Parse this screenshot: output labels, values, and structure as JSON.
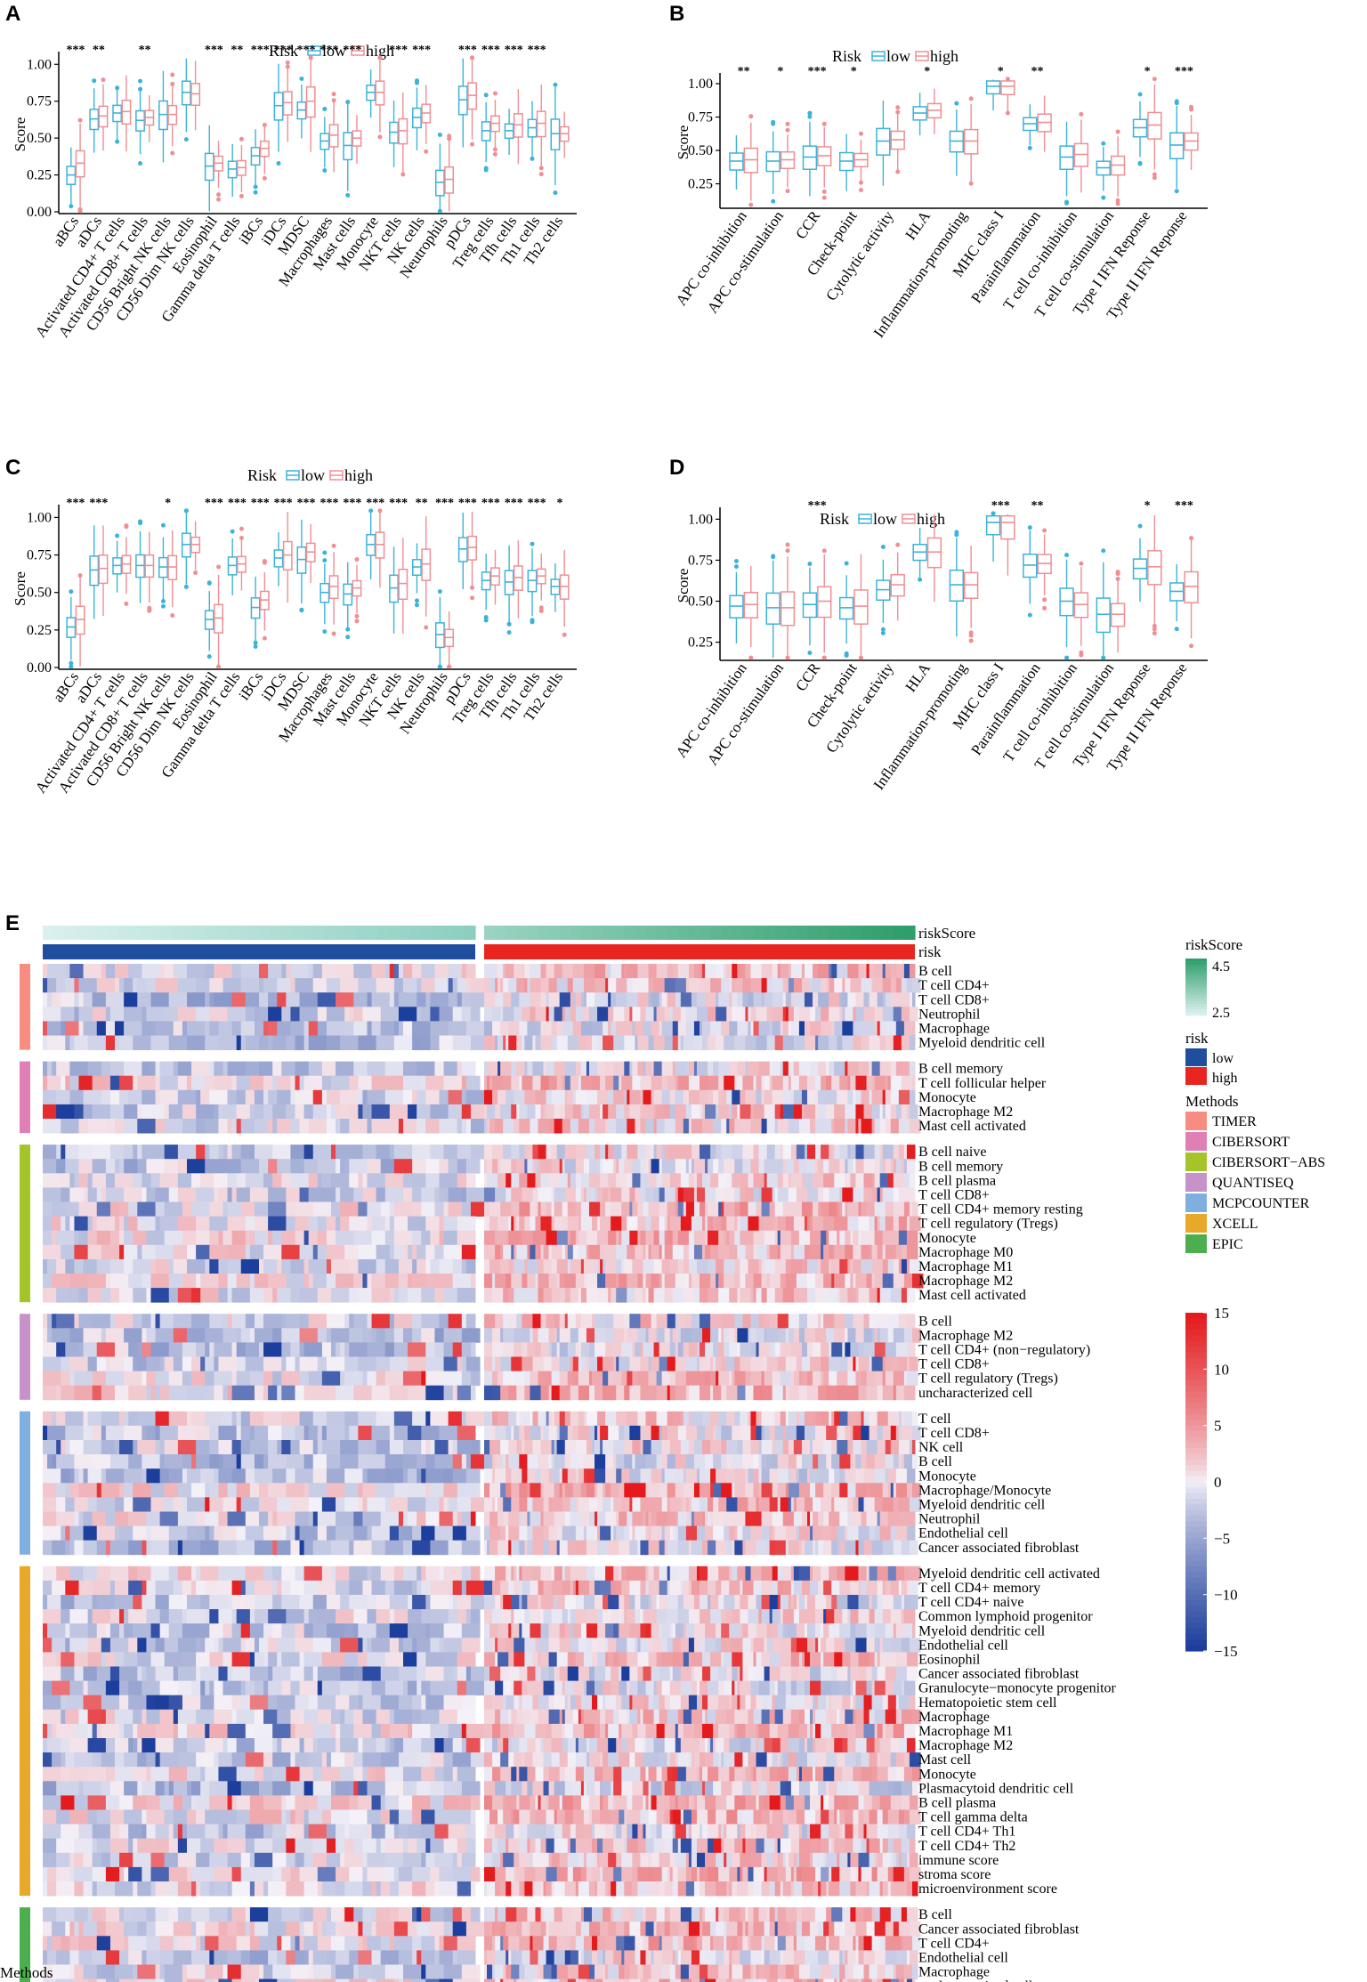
{
  "panels": [
    {
      "letter": "A",
      "legend_title": "Risk",
      "legend_low": "low",
      "legend_high": "high"
    },
    {
      "letter": "B",
      "legend_title": "Risk",
      "legend_low": "low",
      "legend_high": "high"
    },
    {
      "letter": "C",
      "legend_title": "Risk",
      "legend_low": "low",
      "legend_high": "high"
    },
    {
      "letter": "D",
      "legend_title": "Risk",
      "legend_low": "low",
      "legend_high": "high"
    },
    {
      "letter": "E"
    }
  ],
  "colors": {
    "low": "#3bb3d9",
    "high": "#f08e93",
    "heat_low": "#1c3e9c",
    "heat_mid": "#ffffff",
    "heat_high": "#e41a1c",
    "risk_low": "#1f4e9e",
    "risk_high": "#e8251f",
    "score_low": "#d9f0ee",
    "score_high": "#2e9e6a"
  },
  "chart_data": [
    {
      "type": "box",
      "ylabel": "Score",
      "yticks": [
        "0.00",
        "0.25",
        "0.50",
        "0.75",
        "1.00"
      ],
      "ylim": [
        0,
        1.05
      ],
      "categories": [
        "aBCs",
        "aDCs",
        "Activated CD4+ T cells",
        "Activated CD8+ T cells",
        "CD56 Bright NK cells",
        "CD56 Dim NK cells",
        "Eosinophil",
        "Gamma delta T cells",
        "iBCs",
        "iDCs",
        "MDSC",
        "Macrophages",
        "Mast cells",
        "Monocyte",
        "NKT cells",
        "NK cells",
        "Neutrophils",
        "pDCs",
        "Treg cells",
        "Tfh cells",
        "Th1 cells",
        "Th2 cells"
      ],
      "significance": [
        "***",
        "**",
        "",
        "**",
        "",
        "",
        "***",
        "**",
        "***",
        "***",
        "***",
        "***",
        "***",
        "",
        "***",
        "***",
        "",
        "***",
        "***",
        "***",
        "***",
        ""
      ],
      "series": [
        {
          "name": "low",
          "medians": [
            0.25,
            0.63,
            0.67,
            0.62,
            0.66,
            0.81,
            0.31,
            0.29,
            0.38,
            0.72,
            0.69,
            0.48,
            0.45,
            0.81,
            0.54,
            0.64,
            0.2,
            0.76,
            0.55,
            0.55,
            0.57,
            0.53
          ]
        },
        {
          "name": "high",
          "medians": [
            0.33,
            0.65,
            0.68,
            0.64,
            0.66,
            0.8,
            0.33,
            0.3,
            0.43,
            0.74,
            0.75,
            0.52,
            0.5,
            0.81,
            0.55,
            0.67,
            0.22,
            0.79,
            0.6,
            0.59,
            0.6,
            0.53
          ]
        }
      ]
    },
    {
      "type": "box",
      "ylabel": "Score",
      "yticks": [
        "0.25",
        "0.50",
        "0.75",
        "1.00"
      ],
      "ylim": [
        0.08,
        1.04
      ],
      "categories": [
        "APC co-inhibition",
        "APC co-stimulation",
        "CCR",
        "Check-point",
        "Cytolytic activity",
        "HLA",
        "Inflammation-promoting",
        "MHC class I",
        "Parainflammation",
        "T cell co-inhibition",
        "T cell co-stimulation",
        "Type I IFN Reponse",
        "Type II IFN Reponse"
      ],
      "significance": [
        "**",
        "*",
        "***",
        "*",
        "",
        "*",
        "",
        "*",
        "**",
        "",
        "",
        "*",
        "***"
      ],
      "series": [
        {
          "name": "low",
          "medians": [
            0.42,
            0.42,
            0.45,
            0.42,
            0.57,
            0.78,
            0.57,
            0.98,
            0.7,
            0.45,
            0.37,
            0.67,
            0.54
          ]
        },
        {
          "name": "high",
          "medians": [
            0.43,
            0.43,
            0.46,
            0.43,
            0.58,
            0.8,
            0.57,
            0.98,
            0.71,
            0.47,
            0.39,
            0.69,
            0.57
          ]
        }
      ]
    },
    {
      "type": "box",
      "ylabel": "Score",
      "yticks": [
        "0.00",
        "0.25",
        "0.50",
        "0.75",
        "1.00"
      ],
      "ylim": [
        0,
        1.05
      ],
      "categories": [
        "aBCs",
        "aDCs",
        "Activated CD4+ T cells",
        "Activated CD8+ T cells",
        "CD56 Bright NK cells",
        "CD56 Dim NK cells",
        "Eosinophil",
        "Gamma delta T cells",
        "iBCs",
        "iDCs",
        "MDSC",
        "Macrophages",
        "Mast cells",
        "Monocyte",
        "NKT cells",
        "NK cells",
        "Neutrophils",
        "pDCs",
        "Treg cells",
        "Tfh cells",
        "Th1 cells",
        "Th2 cells"
      ],
      "significance": [
        "***",
        "***",
        "",
        "",
        "*",
        "",
        "***",
        "***",
        "***",
        "***",
        "***",
        "***",
        "***",
        "***",
        "***",
        "**",
        "***",
        "***",
        "***",
        "***",
        "***",
        "*"
      ],
      "series": [
        {
          "name": "low",
          "medians": [
            0.27,
            0.65,
            0.68,
            0.68,
            0.67,
            0.82,
            0.32,
            0.68,
            0.4,
            0.73,
            0.72,
            0.5,
            0.49,
            0.82,
            0.53,
            0.67,
            0.22,
            0.79,
            0.58,
            0.57,
            0.58,
            0.54
          ]
        },
        {
          "name": "high",
          "medians": [
            0.32,
            0.66,
            0.69,
            0.68,
            0.67,
            0.82,
            0.33,
            0.69,
            0.45,
            0.75,
            0.77,
            0.54,
            0.53,
            0.82,
            0.56,
            0.69,
            0.2,
            0.8,
            0.61,
            0.6,
            0.61,
            0.54
          ]
        }
      ]
    },
    {
      "type": "box",
      "ylabel": "Score",
      "yticks": [
        "0.25",
        "0.50",
        "0.75",
        "1.00"
      ],
      "ylim": [
        0.15,
        1.04
      ],
      "categories": [
        "APC co-inhibition",
        "APC co-stimulation",
        "CCR",
        "Check-point",
        "Cytolytic activity",
        "HLA",
        "Inflammation-promoting",
        "MHC class I",
        "Parainflammation",
        "T cell co-inhibition",
        "T cell co-stimulation",
        "Type I IFN Reponse",
        "Type II IFN Reponse"
      ],
      "significance": [
        "",
        "",
        "***",
        "",
        "",
        "",
        "",
        "***",
        "**",
        "",
        "",
        "*",
        "***"
      ],
      "series": [
        {
          "name": "low",
          "medians": [
            0.47,
            0.46,
            0.48,
            0.46,
            0.57,
            0.8,
            0.6,
            0.98,
            0.72,
            0.5,
            0.42,
            0.7,
            0.56
          ]
        },
        {
          "name": "high",
          "medians": [
            0.48,
            0.46,
            0.5,
            0.47,
            0.6,
            0.8,
            0.6,
            0.98,
            0.73,
            0.48,
            0.42,
            0.71,
            0.59
          ]
        }
      ]
    },
    {
      "type": "heatmap",
      "annotation_rows": [
        "riskScore",
        "risk"
      ],
      "methods": [
        {
          "name": "TIMER",
          "color": "#f78c80",
          "rows": [
            "B cell",
            "T cell CD4+",
            "T cell CD8+",
            "Neutrophil",
            "Macrophage",
            "Myeloid dendritic cell"
          ]
        },
        {
          "name": "CIBERSORT",
          "color": "#e07fb6",
          "rows": [
            "B cell memory",
            "T cell follicular helper",
            "Monocyte",
            "Macrophage M2",
            "Mast cell activated"
          ]
        },
        {
          "name": "CIBERSORT−ABS",
          "color": "#a5c42a",
          "rows": [
            "B cell naive",
            "B cell memory",
            "B cell plasma",
            "T cell CD8+",
            "T cell CD4+ memory resting",
            "T cell regulatory (Tregs)",
            "Monocyte",
            "Macrophage M0",
            "Macrophage M1",
            "Macrophage M2",
            "Mast cell activated"
          ]
        },
        {
          "name": "QUANTISEQ",
          "color": "#c692c9",
          "rows": [
            "B cell",
            "Macrophage M2",
            "T cell CD4+ (non−regulatory)",
            "T cell CD8+",
            "T cell regulatory (Tregs)",
            "uncharacterized cell"
          ]
        },
        {
          "name": "MCPCOUNTER",
          "color": "#7faee0",
          "rows": [
            "T cell",
            "T cell CD8+",
            "NK cell",
            "B cell",
            "Monocyte",
            "Macrophage/Monocyte",
            "Myeloid dendritic cell",
            "Neutrophil",
            "Endothelial cell",
            "Cancer associated fibroblast"
          ]
        },
        {
          "name": "XCELL",
          "color": "#e8a82a",
          "rows": [
            "Myeloid dendritic cell activated",
            "T cell CD4+ memory",
            "T cell CD4+ naive",
            "Common lymphoid progenitor",
            "Myeloid dendritic cell",
            "Endothelial cell",
            "Eosinophil",
            "Cancer associated fibroblast",
            "Granulocyte−monocyte progenitor",
            "Hematopoietic stem cell",
            "Macrophage",
            "Macrophage M1",
            "Macrophage M2",
            "Mast cell",
            "Monocyte",
            "Plasmacytoid dendritic cell",
            "B cell plasma",
            "T cell gamma delta",
            "T cell CD4+ Th1",
            "T cell CD4+ Th2",
            "immune score",
            "stroma score",
            "microenvironment score"
          ]
        },
        {
          "name": "EPIC",
          "color": "#4cae4f",
          "rows": [
            "B cell",
            "Cancer associated fibroblast",
            "T cell CD4+",
            "Endothelial cell",
            "Macrophage",
            "uncharacterized cell"
          ]
        }
      ],
      "legend": {
        "riskScore_title": "riskScore",
        "riskScore_max": "4.5",
        "riskScore_min": "2.5",
        "risk_title": "risk",
        "risk_low": "low",
        "risk_high": "high",
        "methods_title": "Methods",
        "color_ticks": [
          "15",
          "10",
          "5",
          "0",
          "−5",
          "−10",
          "−15"
        ],
        "color_range": [
          -15,
          15
        ]
      },
      "bottom_label": "Methods"
    }
  ]
}
